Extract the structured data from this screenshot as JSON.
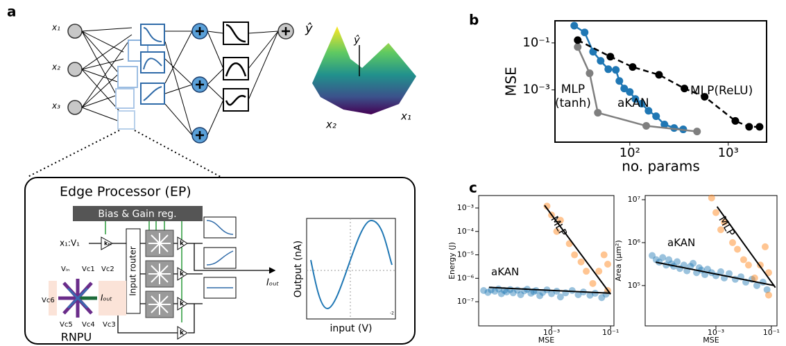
{
  "panel_labels": [
    "a",
    "b",
    "c"
  ],
  "network": {
    "inputs": [
      "x₁",
      "x₂",
      "x₃"
    ],
    "output": "ŷ",
    "surface": {
      "z": "ŷ",
      "x2": "x₂",
      "x1": "x₁"
    }
  },
  "edge_processor": {
    "title": "Edge Processor (EP)",
    "bias_gain": "Bias & Gain reg.",
    "input": "x₁:V₁",
    "router": "Input router",
    "gains": [
      "kᵢₙ",
      "k",
      "k",
      "k",
      "k"
    ],
    "output_current": "Iₒᵤₜ",
    "rnpu": {
      "label": "RNPU",
      "electrodes": [
        "Vᵢₙ",
        "Vc1",
        "Vc2",
        "Vc6",
        "Vc5",
        "Vc4",
        "Vc3"
      ],
      "output": "Iₒᵤₜ"
    },
    "inset": {
      "ylabel": "Output (nA)",
      "xlabel": "input (V)",
      "tick": "-2"
    }
  },
  "chart_data": [
    {
      "type": "line",
      "x_label": "no. params",
      "y_label": "MSE",
      "xlog": true,
      "ylog": true,
      "xlim": [
        17.4,
        2450
      ],
      "ylim": [
        6e-06,
        0.87
      ],
      "xticks": [
        {
          "value": 100,
          "label": "10²"
        },
        {
          "value": 1000,
          "label": "10³"
        }
      ],
      "yticks": [
        {
          "value": 0.1,
          "label": "10⁻¹"
        },
        {
          "value": 0.001,
          "label": "10⁻³"
        }
      ],
      "series": [
        {
          "name": "aKAN",
          "color": "#1f77b4",
          "dash": false,
          "x": [
            27.3,
            34.8,
            42.4,
            50.6,
            60.5,
            72.2,
            78.4,
            87.8,
            100,
            114,
            132,
            155,
            185,
            225,
            282,
            349
          ],
          "values": [
            0.54,
            0.28,
            0.042,
            0.0172,
            0.0076,
            0.0071,
            0.0024,
            0.00115,
            0.00082,
            0.00041,
            0.00026,
            0.00013,
            7.6e-05,
            3.4e-05,
            2.4e-05,
            2.1e-05
          ]
        },
        {
          "name": "MLP\n(tanh)",
          "color": "#7f7f7f",
          "dash": false,
          "x": [
            29.6,
            39.1,
            47.4,
            147,
            482
          ],
          "values": [
            0.067,
            0.0051,
            0.000107,
            2.95e-05,
            1.7e-05
          ]
        },
        {
          "name": "MLP(ReLU)",
          "color": "#000000",
          "dash": true,
          "x": [
            29.6,
            63.5,
            107,
            198,
            359,
            576,
            1180,
            1630,
            2080
          ],
          "values": [
            0.131,
            0.026,
            0.0094,
            0.0044,
            0.00115,
            0.00051,
            4.8e-05,
            2.7e-05,
            2.7e-05
          ]
        }
      ]
    },
    {
      "type": "scatter",
      "x_label": "MSE",
      "y_label": "Energy (J)",
      "xlog": true,
      "ylog": true,
      "xlim": [
        3.4e-06,
        0.13
      ],
      "ylim": [
        9.3e-09,
        0.0034
      ],
      "xticks": [
        {
          "value": 0.001,
          "label": "10⁻³"
        },
        {
          "value": 0.1,
          "label": "10⁻¹"
        }
      ],
      "yticks": [
        {
          "value": 0.001,
          "label": "10⁻³"
        },
        {
          "value": 0.0001,
          "label": "10⁻⁴"
        },
        {
          "value": 1e-05,
          "label": "10⁻⁵"
        },
        {
          "value": 1e-06,
          "label": "10⁻⁶"
        },
        {
          "value": 1e-07,
          "label": "10⁻⁷"
        }
      ],
      "series": [
        {
          "name": "aKAN",
          "color": "#1f77b4",
          "x": [
            5e-06,
            7e-06,
            9e-06,
            1.2e-05,
            1.6e-05,
            2e-05,
            2.5e-05,
            3e-05,
            4e-05,
            5e-05,
            7e-05,
            9e-05,
            0.00012,
            0.00015,
            0.0002,
            0.00025,
            0.0003,
            0.0004,
            0.0005,
            0.0007,
            0.001,
            0.0015,
            0.002,
            0.003,
            0.005,
            0.008,
            0.012,
            0.02,
            0.03,
            0.05,
            0.07
          ],
          "values": [
            3e-07,
            2.5e-07,
            3.2e-07,
            2.8e-07,
            3.5e-07,
            2.2e-07,
            3e-07,
            2.6e-07,
            3.3e-07,
            2.4e-07,
            3.1e-07,
            2e-07,
            2.9e-07,
            3.4e-07,
            2.3e-07,
            2.7e-07,
            3e-07,
            1.8e-07,
            2.5e-07,
            3.2e-07,
            2.2e-07,
            2.8e-07,
            1.6e-07,
            2.4e-07,
            3e-07,
            2e-07,
            2.6e-07,
            1.9e-07,
            2.3e-07,
            1.5e-07,
            2.1e-07
          ]
        },
        {
          "name": "MLP",
          "color": "#ff7f0e",
          "x": [
            0.0007,
            0.001,
            0.0015,
            0.002,
            0.004,
            0.006,
            0.01,
            0.015,
            0.025,
            0.04,
            0.06,
            0.08,
            0.08
          ],
          "values": [
            0.0012,
            0.0005,
            0.0001,
            0.0003,
            3e-05,
            1e-05,
            5e-06,
            2e-06,
            6e-07,
            2e-06,
            1e-05,
            3e-07,
            4e-06
          ]
        }
      ],
      "fit_lines": [
        {
          "color": "#000000",
          "x": [
            7.6e-06,
            0.1
          ],
          "values": [
            4.1e-07,
            2.3e-07
          ]
        },
        {
          "color": "#000000",
          "x": [
            0.00058,
            0.1
          ],
          "values": [
            0.0013,
            2.1e-07
          ]
        }
      ]
    },
    {
      "type": "scatter",
      "x_label": "MSE",
      "y_label": "Area (μm²)",
      "xlog": true,
      "ylog": true,
      "xlim": [
        2.8e-06,
        0.16
      ],
      "ylim": [
        11500,
        12500000
      ],
      "xticks": [
        {
          "value": 0.001,
          "label": "10⁻³"
        },
        {
          "value": 0.1,
          "label": "10⁻¹"
        }
      ],
      "yticks": [
        {
          "value": 100000,
          "label": "10⁵"
        },
        {
          "value": 1000000,
          "label": "10⁶"
        },
        {
          "value": 10000000,
          "label": "10⁷"
        }
      ],
      "series": [
        {
          "name": "aKAN",
          "color": "#1f77b4",
          "x": [
            5e-06,
            7e-06,
            9e-06,
            1.2e-05,
            1.6e-05,
            2e-05,
            2.5e-05,
            3e-05,
            4e-05,
            5e-05,
            7e-05,
            9e-05,
            0.00012,
            0.00015,
            0.0002,
            0.00025,
            0.0003,
            0.0004,
            0.0005,
            0.0007,
            0.001,
            0.0015,
            0.002,
            0.003,
            0.005,
            0.008,
            0.012,
            0.02,
            0.03,
            0.05,
            0.07
          ],
          "values": [
            500000,
            400000,
            350000,
            450000,
            300000,
            400000,
            320000,
            280000,
            360000,
            250000,
            300000,
            220000,
            280000,
            330000,
            200000,
            260000,
            230000,
            180000,
            240000,
            200000,
            170000,
            210000,
            150000,
            190000,
            140000,
            160000,
            120000,
            140000,
            100000,
            120000,
            80000
          ]
        },
        {
          "name": "MLP",
          "color": "#ff7f0e",
          "x": [
            0.0007,
            0.001,
            0.0015,
            0.002,
            0.004,
            0.006,
            0.01,
            0.015,
            0.025,
            0.04,
            0.06,
            0.08,
            0.08
          ],
          "values": [
            11000000,
            5000000,
            2000000,
            3000000,
            1000000,
            700000,
            400000,
            300000,
            150000,
            300000,
            800000,
            60000,
            200000
          ]
        }
      ],
      "fit_lines": [
        {
          "color": "#000000",
          "x": [
            6.7e-06,
            0.13
          ],
          "values": [
            350000,
            100000
          ]
        },
        {
          "color": "#000000",
          "x": [
            0.0011,
            0.14
          ],
          "values": [
            6900000,
            90000
          ]
        }
      ]
    }
  ]
}
